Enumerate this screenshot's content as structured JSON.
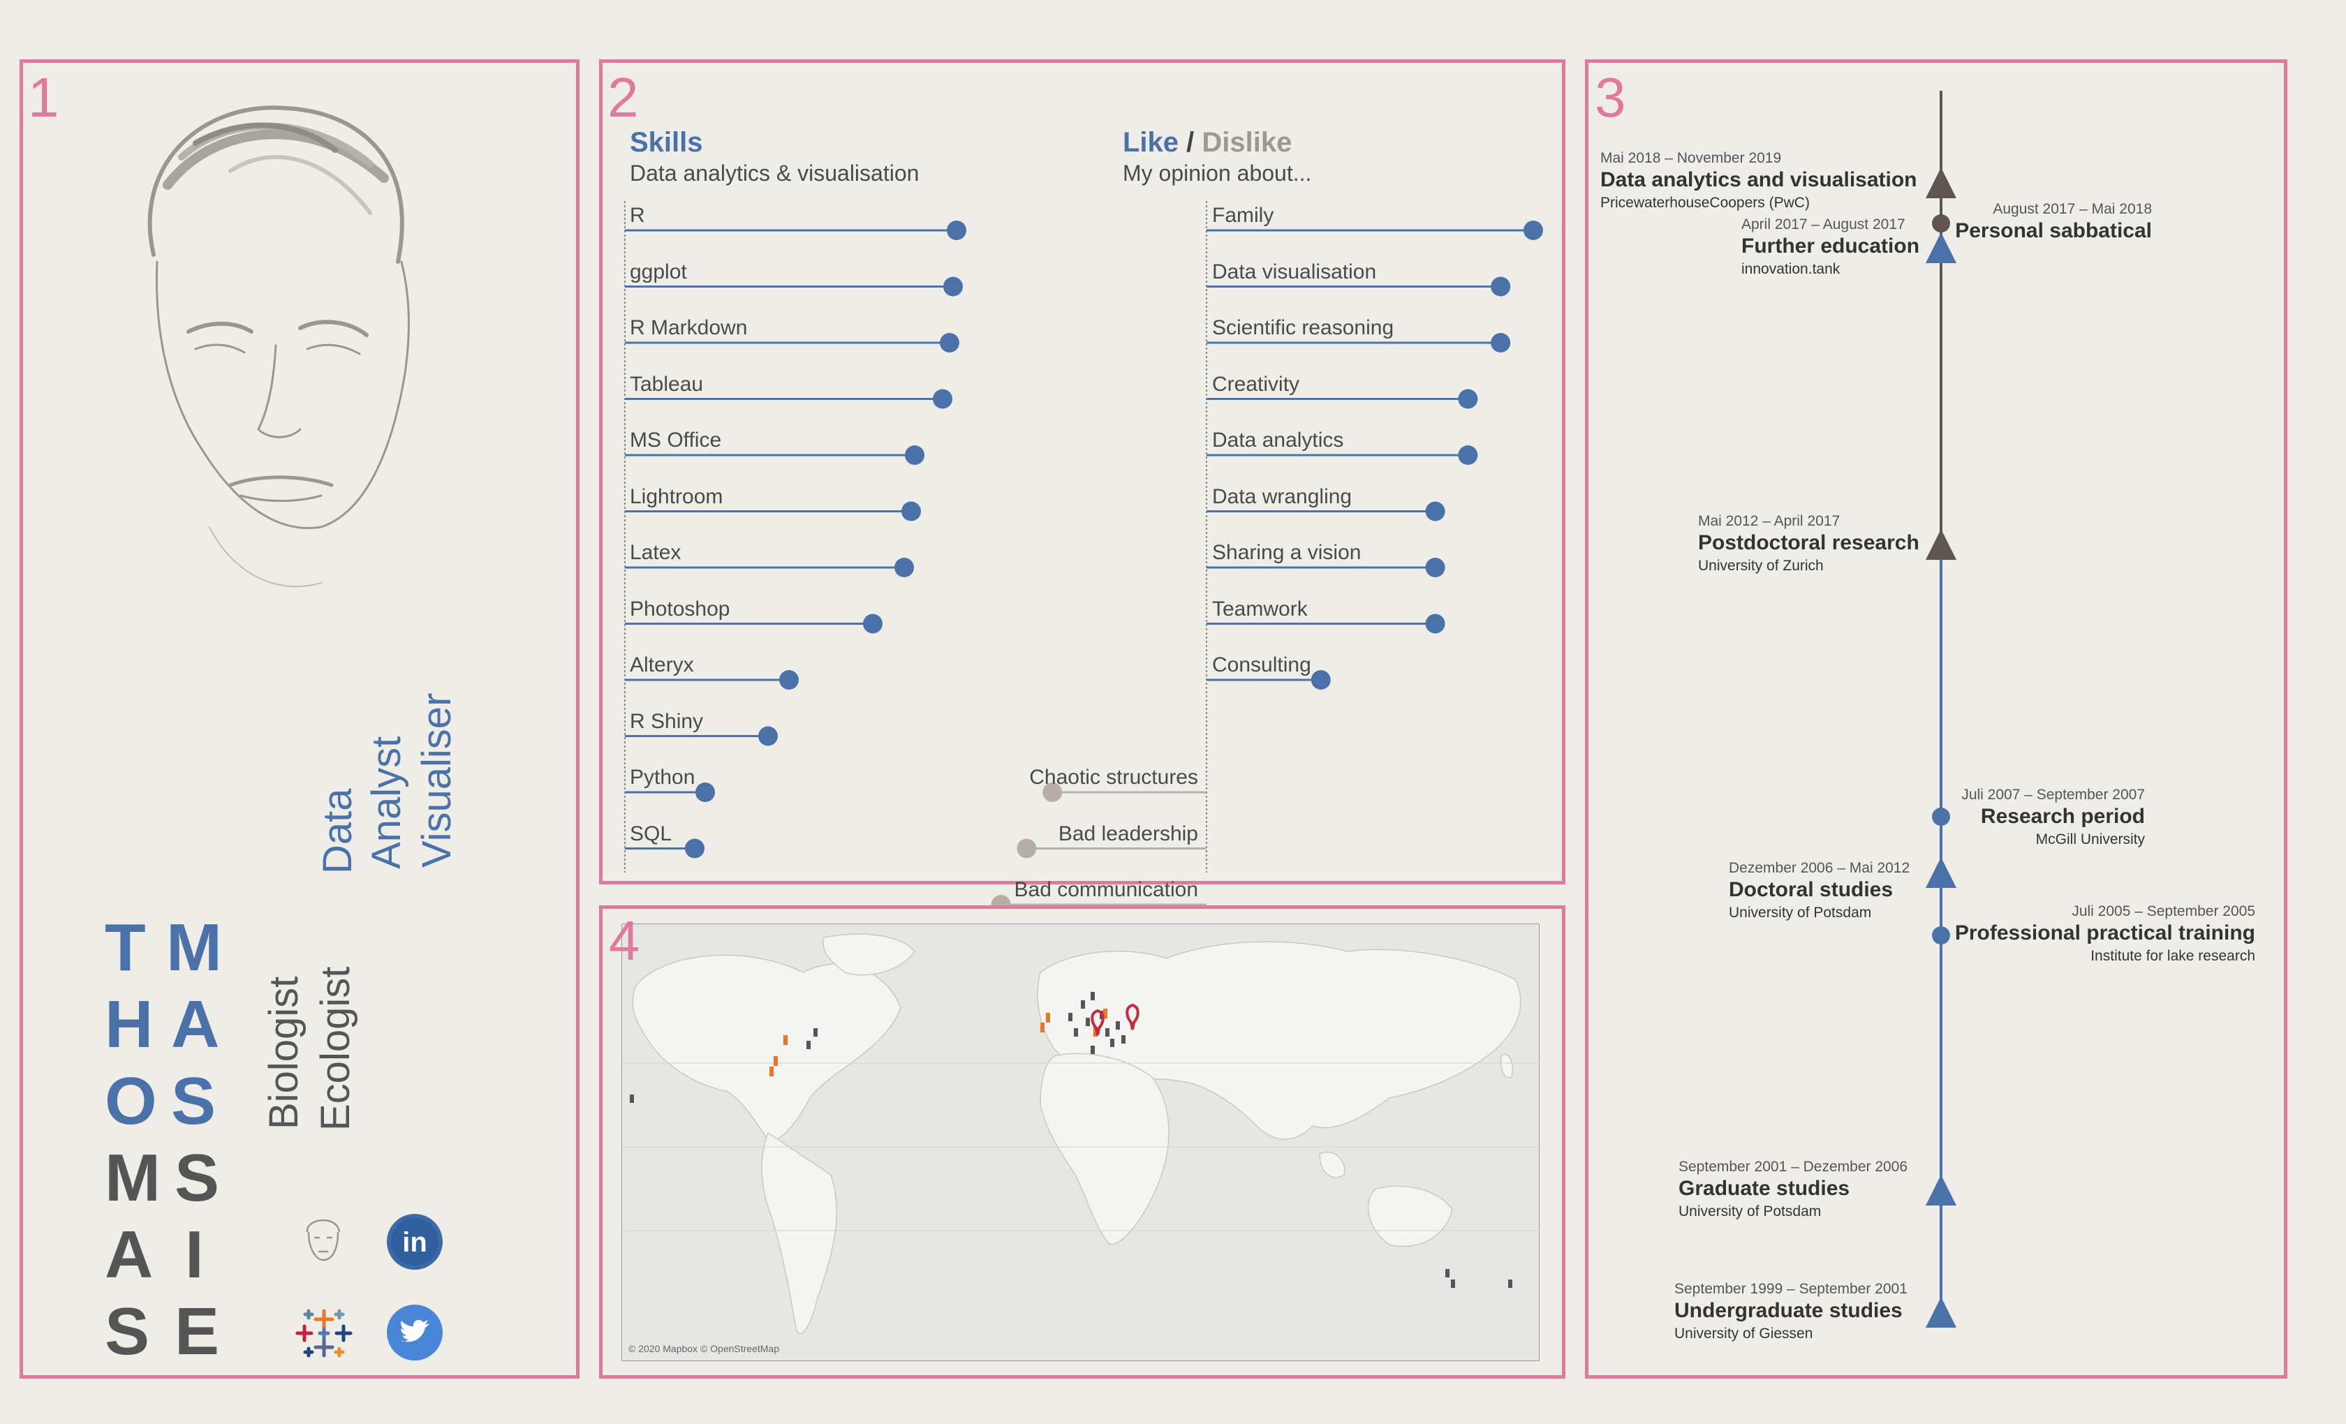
{
  "panels": {
    "p1": "1",
    "p2": "2",
    "p3": "3",
    "p4": "4"
  },
  "colors": {
    "blue": "#4a72a8",
    "grey": "#5a5a5a",
    "pink": "#e07a9c",
    "dislike": "#b8aea8",
    "timeline_dark": "#5e5452"
  },
  "profile": {
    "first_name": [
      "T",
      "H",
      "O",
      "M",
      "A",
      "S"
    ],
    "last_name": [
      "M",
      "A",
      "S",
      "S",
      "I",
      "E"
    ],
    "roles_grey": [
      "Biologist",
      "Ecologist"
    ],
    "roles_blue": [
      "Data",
      "Analyst",
      "Visualiser"
    ],
    "links": [
      "avatar-icon",
      "linkedin-icon",
      "tableau-icon",
      "twitter-icon"
    ]
  },
  "skills": {
    "title": "Skills",
    "subtitle": "Data analytics & visualisation",
    "items": [
      {
        "label": "R",
        "value": 0.95
      },
      {
        "label": "ggplot",
        "value": 0.94
      },
      {
        "label": "R Markdown",
        "value": 0.93
      },
      {
        "label": "Tableau",
        "value": 0.91
      },
      {
        "label": "MS Office",
        "value": 0.83
      },
      {
        "label": "Lightroom",
        "value": 0.82
      },
      {
        "label": "Latex",
        "value": 0.8
      },
      {
        "label": "Photoshop",
        "value": 0.71
      },
      {
        "label": "Alteryx",
        "value": 0.47
      },
      {
        "label": "R Shiny",
        "value": 0.41
      },
      {
        "label": "Python",
        "value": 0.23
      },
      {
        "label": "SQL",
        "value": 0.2
      }
    ]
  },
  "opinion": {
    "like": "Like",
    "slash": "/",
    "dislike": "Dislike",
    "subtitle": "My opinion about...",
    "likes": [
      {
        "label": "Family",
        "value": 1.0
      },
      {
        "label": "Data visualisation",
        "value": 0.9
      },
      {
        "label": "Scientific reasoning",
        "value": 0.9
      },
      {
        "label": "Creativity",
        "value": 0.8
      },
      {
        "label": "Data analytics",
        "value": 0.8
      },
      {
        "label": "Data wrangling",
        "value": 0.7
      },
      {
        "label": "Sharing a vision",
        "value": 0.7
      },
      {
        "label": "Teamwork",
        "value": 0.7
      },
      {
        "label": "Consulting",
        "value": 0.35
      }
    ],
    "dislikes": [
      {
        "label": "Chaotic structures",
        "value": 0.6
      },
      {
        "label": "Bad leadership",
        "value": 0.7
      },
      {
        "label": "Bad communication",
        "value": 0.8
      }
    ]
  },
  "map": {
    "attribution": "© 2020 Mapbox © OpenStreetMap"
  },
  "timeline": [
    {
      "date": "Mai 2018 – November 2019",
      "title": "Data analytics and visualisation",
      "org": "PricewaterhouseCoopers (PwC)",
      "side": "left",
      "marker": "triangle",
      "tone": "dark"
    },
    {
      "date": "August 2017 – Mai 2018",
      "title": "Personal sabbatical",
      "org": "",
      "side": "right",
      "marker": "circle",
      "tone": "dark"
    },
    {
      "date": "April 2017 – August 2017",
      "title": "Further education",
      "org": "innovation.tank",
      "side": "left",
      "marker": "triangle",
      "tone": "blue"
    },
    {
      "date": "Mai 2012 – April 2017",
      "title": "Postdoctoral research",
      "org": "University of Zurich",
      "side": "left",
      "marker": "triangle",
      "tone": "dark"
    },
    {
      "date": "Juli 2007 – September 2007",
      "title": "Research period",
      "org": "McGill University",
      "side": "right",
      "marker": "circle",
      "tone": "blue"
    },
    {
      "date": "Dezember 2006 – Mai 2012",
      "title": "Doctoral studies",
      "org": "University of Potsdam",
      "side": "left",
      "marker": "triangle",
      "tone": "blue"
    },
    {
      "date": "Juli 2005 – September 2005",
      "title": "Professional practical training",
      "org": "Institute for lake research",
      "side": "right",
      "marker": "circle",
      "tone": "blue"
    },
    {
      "date": "September 2001 – Dezember 2006",
      "title": "Graduate studies",
      "org": "University of Potsdam",
      "side": "left",
      "marker": "triangle",
      "tone": "blue"
    },
    {
      "date": "September 1999 – September 2001",
      "title": "Undergraduate studies",
      "org": "University of Giessen",
      "side": "left",
      "marker": "triangle",
      "tone": "blue"
    }
  ]
}
